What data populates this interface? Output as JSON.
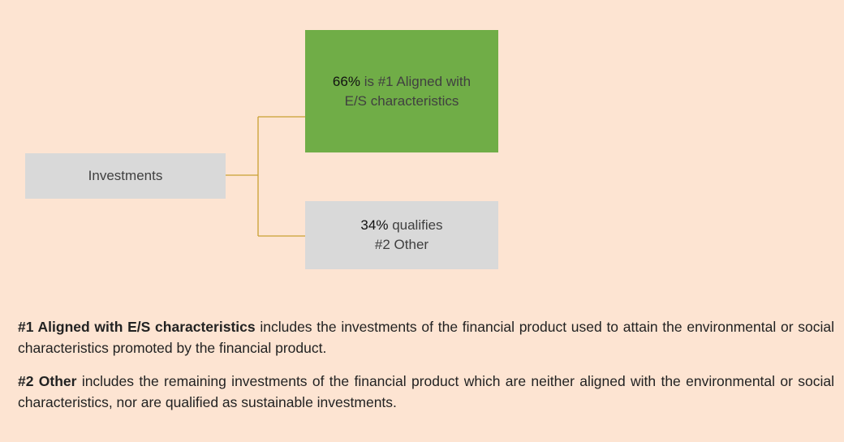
{
  "nodes": [
    {
      "label": "Investments"
    },
    {
      "percent": "66%",
      "label": "is #1 Aligned with E/S characteristics"
    },
    {
      "percent": "34%",
      "label": "qualifies #2 Other"
    }
  ],
  "notes": [
    {
      "term": "#1 Aligned with E/S characteristics",
      "text": "includes the investments of the financial product used to attain the environmental or social characteristics promoted by the financial product."
    },
    {
      "term": "#2 Other",
      "text": "includes the remaining investments of the financial product which are neither aligned with the environmental or social characteristics, nor are qualified as sustainable investments."
    }
  ]
}
